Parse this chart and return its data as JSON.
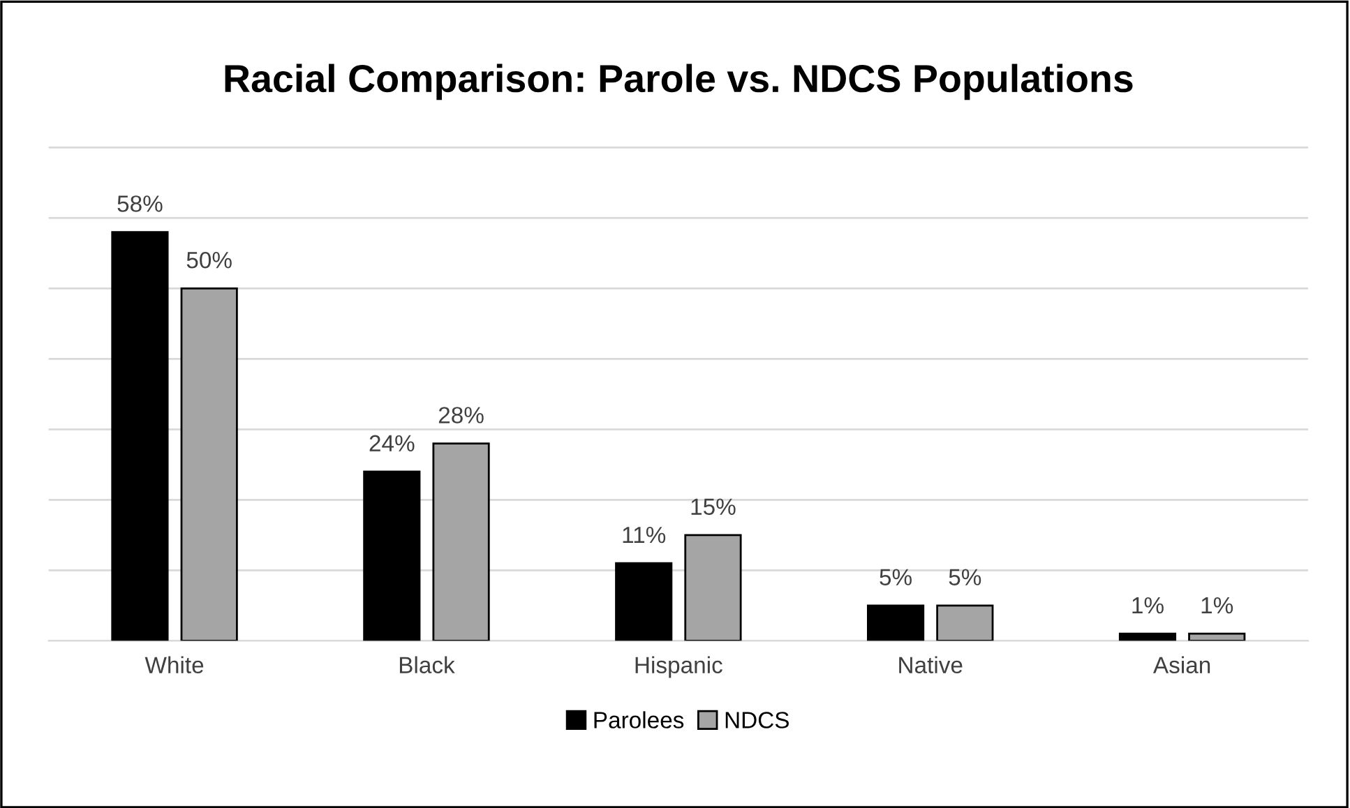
{
  "chart_data": {
    "type": "bar",
    "title": "Racial Comparison: Parole vs. NDCS Populations",
    "categories": [
      "White",
      "Black",
      "Hispanic",
      "Native",
      "Asian"
    ],
    "series": [
      {
        "name": "Parolees",
        "color": "#000000",
        "values": [
          58,
          24,
          11,
          5,
          1
        ],
        "value_labels": [
          "58%",
          "24%",
          "11%",
          "5%",
          "1%"
        ]
      },
      {
        "name": "NDCS",
        "color": "#a5a5a5",
        "values": [
          50,
          28,
          15,
          5,
          1
        ],
        "value_labels": [
          "50%",
          "28%",
          "15%",
          "5%",
          "1%"
        ]
      }
    ],
    "tick_labels": "x",
    "grid": "y",
    "legend": "bottom"
  }
}
